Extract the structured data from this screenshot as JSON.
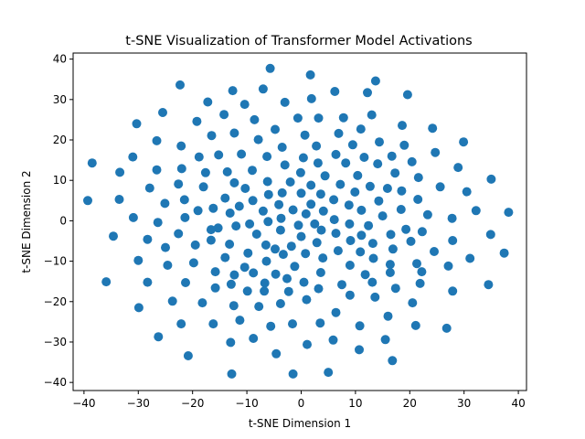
{
  "chart_data": {
    "type": "scatter",
    "title": "t-SNE Visualization of Transformer Model Activations",
    "xlabel": "t-SNE Dimension 1",
    "ylabel": "t-SNE Dimension 2",
    "xlim": [
      -42.0,
      41.5
    ],
    "ylim": [
      -42.0,
      41.5
    ],
    "xticks": [
      -40,
      -30,
      -20,
      -10,
      0,
      10,
      20,
      30,
      40
    ],
    "yticks": [
      -40,
      -30,
      -20,
      -10,
      0,
      10,
      20,
      30,
      40
    ],
    "grid": false,
    "legend": "none",
    "marker_color": "#1f77b4",
    "points": [
      [
        -5.7,
        37.7
      ],
      [
        1.7,
        36.1
      ],
      [
        13.7,
        34.6
      ],
      [
        -22.3,
        33.6
      ],
      [
        -12.6,
        32.2
      ],
      [
        -7.0,
        32.6
      ],
      [
        6.2,
        32.0
      ],
      [
        12.2,
        31.7
      ],
      [
        19.6,
        31.2
      ],
      [
        -17.2,
        29.4
      ],
      [
        -3.0,
        29.3
      ],
      [
        1.9,
        30.2
      ],
      [
        -10.4,
        28.8
      ],
      [
        -25.5,
        26.8
      ],
      [
        -14.2,
        26.3
      ],
      [
        -0.6,
        25.4
      ],
      [
        3.2,
        25.4
      ],
      [
        7.8,
        25.5
      ],
      [
        13.0,
        26.2
      ],
      [
        -30.3,
        24.0
      ],
      [
        -19.2,
        24.6
      ],
      [
        -8.6,
        25.0
      ],
      [
        18.6,
        23.6
      ],
      [
        24.2,
        22.9
      ],
      [
        -4.8,
        22.6
      ],
      [
        0.7,
        21.2
      ],
      [
        6.9,
        21.6
      ],
      [
        11.0,
        22.7
      ],
      [
        -16.5,
        21.1
      ],
      [
        -12.3,
        21.7
      ],
      [
        -26.6,
        19.8
      ],
      [
        -22.1,
        18.5
      ],
      [
        -7.9,
        20.1
      ],
      [
        2.8,
        18.5
      ],
      [
        9.5,
        18.8
      ],
      [
        14.4,
        19.5
      ],
      [
        19.0,
        18.7
      ],
      [
        29.9,
        19.5
      ],
      [
        -15.2,
        16.3
      ],
      [
        -3.5,
        18.2
      ],
      [
        -31.0,
        15.8
      ],
      [
        -38.5,
        14.3
      ],
      [
        -18.8,
        15.8
      ],
      [
        -11.0,
        16.5
      ],
      [
        -6.3,
        15.9
      ],
      [
        0.4,
        15.6
      ],
      [
        6.4,
        16.4
      ],
      [
        11.6,
        15.7
      ],
      [
        16.7,
        16.0
      ],
      [
        24.7,
        16.9
      ],
      [
        -3.0,
        13.8
      ],
      [
        3.1,
        14.3
      ],
      [
        8.2,
        14.3
      ],
      [
        14.1,
        14.1
      ],
      [
        20.4,
        14.6
      ],
      [
        28.9,
        13.2
      ],
      [
        -33.4,
        12.0
      ],
      [
        -26.6,
        12.6
      ],
      [
        -22.0,
        12.9
      ],
      [
        -13.6,
        12.1
      ],
      [
        -9.0,
        12.5
      ],
      [
        -0.1,
        11.9
      ],
      [
        4.4,
        11.1
      ],
      [
        10.4,
        11.2
      ],
      [
        17.3,
        11.8
      ],
      [
        -17.6,
        11.9
      ],
      [
        -6.2,
        9.7
      ],
      [
        21.6,
        10.7
      ],
      [
        35.0,
        10.3
      ],
      [
        -27.9,
        8.1
      ],
      [
        -22.6,
        9.1
      ],
      [
        -12.3,
        9.4
      ],
      [
        -2.0,
        9.6
      ],
      [
        1.8,
        8.8
      ],
      [
        7.2,
        9.0
      ],
      [
        12.7,
        8.5
      ],
      [
        -18.0,
        8.4
      ],
      [
        25.6,
        8.4
      ],
      [
        15.9,
        8.0
      ],
      [
        -10.3,
        8.0
      ],
      [
        -8.9,
        5.0
      ],
      [
        -6.0,
        6.5
      ],
      [
        -3.5,
        6.9
      ],
      [
        0.0,
        6.8
      ],
      [
        3.6,
        6.6
      ],
      [
        9.9,
        7.1
      ],
      [
        18.5,
        7.4
      ],
      [
        30.5,
        7.2
      ],
      [
        -14.0,
        5.6
      ],
      [
        -21.5,
        5.2
      ],
      [
        -33.5,
        5.3
      ],
      [
        -39.3,
        5.0
      ],
      [
        6.0,
        5.2
      ],
      [
        -4.1,
        4.0
      ],
      [
        -11.4,
        3.6
      ],
      [
        -16.2,
        3.1
      ],
      [
        -25.1,
        4.3
      ],
      [
        1.8,
        4.1
      ],
      [
        8.8,
        3.9
      ],
      [
        14.3,
        4.9
      ],
      [
        21.5,
        5.3
      ],
      [
        -1.5,
        2.7
      ],
      [
        11.1,
        2.6
      ],
      [
        32.2,
        2.5
      ],
      [
        -7.0,
        2.4
      ],
      [
        -19.0,
        2.5
      ],
      [
        -13.1,
        1.9
      ],
      [
        0.9,
        1.7
      ],
      [
        4.1,
        2.4
      ],
      [
        18.4,
        2.8
      ],
      [
        23.3,
        1.5
      ],
      [
        38.2,
        2.1
      ],
      [
        -30.9,
        0.8
      ],
      [
        -21.4,
        0.8
      ],
      [
        -3.7,
        0.6
      ],
      [
        6.1,
        0.3
      ],
      [
        15.0,
        1.2
      ],
      [
        -26.4,
        -0.4
      ],
      [
        -9.5,
        -0.8
      ],
      [
        -6.1,
        -0.2
      ],
      [
        -0.5,
        -1.1
      ],
      [
        2.5,
        -0.8
      ],
      [
        8.9,
        -0.8
      ],
      [
        12.4,
        -1.2
      ],
      [
        27.8,
        0.6
      ],
      [
        -15.3,
        -1.8
      ],
      [
        -12.0,
        -1.3
      ],
      [
        -16.6,
        -2.2
      ],
      [
        -3.8,
        -2.3
      ],
      [
        3.7,
        -2.3
      ],
      [
        6.4,
        -3.1
      ],
      [
        11.1,
        -3.6
      ],
      [
        19.3,
        -2.1
      ],
      [
        22.3,
        -2.7
      ],
      [
        -22.6,
        -3.2
      ],
      [
        -8.2,
        -3.3
      ],
      [
        0.0,
        -3.9
      ],
      [
        16.5,
        -3.4
      ],
      [
        34.9,
        -3.4
      ],
      [
        -34.6,
        -3.8
      ],
      [
        -28.3,
        -4.6
      ],
      [
        -13.2,
        -5.8
      ],
      [
        -16.6,
        -4.8
      ],
      [
        9.1,
        -4.9
      ],
      [
        -6.5,
        -6.0
      ],
      [
        2.9,
        -5.4
      ],
      [
        -4.8,
        -7.0
      ],
      [
        13.2,
        -5.6
      ],
      [
        20.2,
        -5.1
      ],
      [
        27.9,
        -4.9
      ],
      [
        -25.0,
        -6.6
      ],
      [
        -19.5,
        -6.0
      ],
      [
        -1.8,
        -6.3
      ],
      [
        6.8,
        -7.4
      ],
      [
        16.9,
        -7.0
      ],
      [
        -9.8,
        -8.0
      ],
      [
        -3.3,
        -8.3
      ],
      [
        0.8,
        -8.1
      ],
      [
        10.9,
        -7.7
      ],
      [
        24.5,
        -7.6
      ],
      [
        37.4,
        -8.0
      ],
      [
        -14.0,
        -9.1
      ],
      [
        4.0,
        -9.2
      ],
      [
        13.3,
        -9.3
      ],
      [
        -30.0,
        -9.8
      ],
      [
        -19.8,
        -10.4
      ],
      [
        -6.4,
        -10.0
      ],
      [
        9.0,
        -11.0
      ],
      [
        16.4,
        -10.8
      ],
      [
        31.1,
        -9.3
      ],
      [
        -24.6,
        -11.0
      ],
      [
        -10.4,
        -11.5
      ],
      [
        -1.2,
        -11.3
      ],
      [
        21.3,
        -10.6
      ],
      [
        27.1,
        -11.2
      ],
      [
        -15.8,
        -12.6
      ],
      [
        -4.7,
        -13.2
      ],
      [
        3.6,
        -12.8
      ],
      [
        11.8,
        -13.3
      ],
      [
        16.4,
        -12.8
      ],
      [
        22.2,
        -12.6
      ],
      [
        -12.3,
        -13.4
      ],
      [
        -8.8,
        -12.9
      ],
      [
        -35.9,
        -15.1
      ],
      [
        -28.3,
        -15.2
      ],
      [
        -21.3,
        -15.3
      ],
      [
        -2.6,
        -14.3
      ],
      [
        0.5,
        -15.2
      ],
      [
        7.5,
        -15.8
      ],
      [
        -12.9,
        -15.7
      ],
      [
        -6.7,
        -15.4
      ],
      [
        13.1,
        -15.2
      ],
      [
        21.9,
        -15.5
      ],
      [
        34.5,
        -15.8
      ],
      [
        -9.9,
        -17.4
      ],
      [
        -2.3,
        -17.5
      ],
      [
        -6.8,
        -17.4
      ],
      [
        9.0,
        -18.4
      ],
      [
        3.2,
        -16.8
      ],
      [
        -15.8,
        -16.6
      ],
      [
        17.4,
        -16.7
      ],
      [
        27.9,
        -17.4
      ],
      [
        -23.7,
        -19.9
      ],
      [
        -18.2,
        -20.3
      ],
      [
        1.0,
        -19.5
      ],
      [
        13.6,
        -18.9
      ],
      [
        -3.8,
        -20.5
      ],
      [
        -12.4,
        -21.0
      ],
      [
        -7.8,
        -21.2
      ],
      [
        20.5,
        -20.3
      ],
      [
        -29.9,
        -21.5
      ],
      [
        6.4,
        -22.7
      ],
      [
        16.0,
        -23.6
      ],
      [
        -1.6,
        -25.5
      ],
      [
        -11.3,
        -24.6
      ],
      [
        -5.6,
        -26.1
      ],
      [
        3.5,
        -25.3
      ],
      [
        21.1,
        -25.9
      ],
      [
        -16.2,
        -25.5
      ],
      [
        -22.1,
        -25.5
      ],
      [
        10.8,
        -26.0
      ],
      [
        26.8,
        -26.6
      ],
      [
        -26.3,
        -28.7
      ],
      [
        -8.8,
        -29.1
      ],
      [
        5.9,
        -29.5
      ],
      [
        15.5,
        -29.4
      ],
      [
        -13.0,
        -30.1
      ],
      [
        1.1,
        -30.6
      ],
      [
        10.7,
        -31.9
      ],
      [
        -20.8,
        -33.4
      ],
      [
        -4.6,
        -32.9
      ],
      [
        16.8,
        -34.6
      ],
      [
        -12.8,
        -37.9
      ],
      [
        -1.5,
        -37.9
      ],
      [
        5.0,
        -37.5
      ]
    ]
  }
}
